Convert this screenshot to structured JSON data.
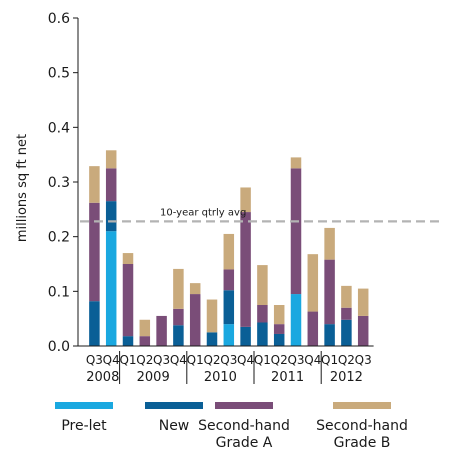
{
  "chart_data": {
    "type": "bar",
    "stacked": true,
    "ylabel": "millions sq ft net",
    "ylim": [
      0,
      0.6
    ],
    "yticks": [
      "0.0",
      "0.1",
      "0.2",
      "0.3",
      "0.4",
      "0.5",
      "0.6"
    ],
    "grid": false,
    "legend_position": "bottom",
    "categories": [
      "Q3 2008",
      "Q4 2008",
      "Q1 2009",
      "Q2 2009",
      "Q3 2009",
      "Q4 2009",
      "Q1 2010",
      "Q2 2010",
      "Q3 2010",
      "Q4 2010",
      "Q1 2011",
      "Q2 2011",
      "Q3 2011",
      "Q4 2011",
      "Q1 2012",
      "Q2 2012",
      "Q3 2012"
    ],
    "quarter_labels": [
      "Q3",
      "Q4",
      "Q1",
      "Q2",
      "Q3",
      "Q4",
      "Q1",
      "Q2",
      "Q3",
      "Q4",
      "Q1",
      "Q2",
      "Q3",
      "Q4",
      "Q1",
      "Q2",
      "Q3"
    ],
    "year_groups": [
      {
        "label": "2008",
        "start": 0,
        "end": 1
      },
      {
        "label": "2009",
        "start": 2,
        "end": 5
      },
      {
        "label": "2010",
        "start": 6,
        "end": 9
      },
      {
        "label": "2011",
        "start": 10,
        "end": 13
      },
      {
        "label": "2012",
        "start": 14,
        "end": 16
      }
    ],
    "series": [
      {
        "name": "Pre-let",
        "color": "#1aa8e0",
        "values": [
          0,
          0.21,
          0,
          0,
          0,
          0,
          0,
          0,
          0.04,
          0,
          0,
          0,
          0.095,
          0,
          0,
          0,
          0
        ]
      },
      {
        "name": "New",
        "color": "#0a5f96",
        "values": [
          0.082,
          0.055,
          0.018,
          0,
          0,
          0.038,
          0,
          0.025,
          0.062,
          0.035,
          0.043,
          0.022,
          0,
          0,
          0.04,
          0.048,
          0
        ]
      },
      {
        "name": "Second-hand Grade A",
        "color": "#7a4d78",
        "values": [
          0.18,
          0.06,
          0.132,
          0.018,
          0.055,
          0.03,
          0.095,
          0,
          0.038,
          0.21,
          0.032,
          0.018,
          0.23,
          0.063,
          0.118,
          0.022,
          0.055
        ]
      },
      {
        "name": "Second-hand Grade B",
        "color": "#c9aa7c",
        "values": [
          0.067,
          0.033,
          0.02,
          0.03,
          0,
          0.073,
          0.02,
          0.06,
          0.065,
          0.045,
          0.073,
          0.035,
          0.02,
          0.105,
          0.058,
          0.04,
          0.05
        ]
      }
    ],
    "annotation": {
      "text": "10-year qtrly avg",
      "value": 0.228,
      "color": "#b3b3b3"
    },
    "legend_labels": [
      {
        "line1": "Pre-let",
        "line2": ""
      },
      {
        "line1": "New",
        "line2": ""
      },
      {
        "line1": "Second-hand",
        "line2": "Grade A"
      },
      {
        "line1": "Second-hand",
        "line2": "Grade B"
      }
    ]
  }
}
